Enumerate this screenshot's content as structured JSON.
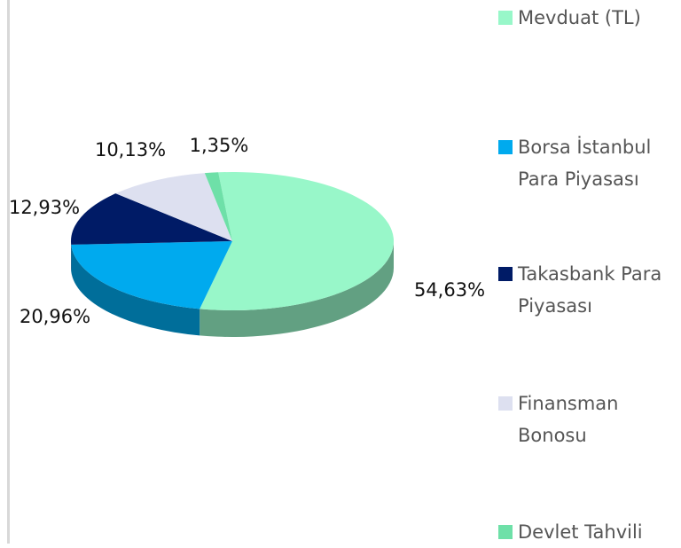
{
  "chart_data": {
    "type": "pie",
    "categories": [
      "Mevduat (TL)",
      "Borsa İstanbul Para Piyasası",
      "Takasbank Para Piyasası",
      "Finansman Bonosu",
      "Devlet Tahvili"
    ],
    "values": [
      54.63,
      20.96,
      12.93,
      10.13,
      1.35
    ],
    "value_labels": [
      "54,63%",
      "20,96%",
      "12,93%",
      "10,13%",
      "1,35%"
    ],
    "colors": [
      "#98f7c9",
      "#00aaee",
      "#001b66",
      "#dde0f0",
      "#6ee0a8"
    ],
    "legend": "right"
  }
}
